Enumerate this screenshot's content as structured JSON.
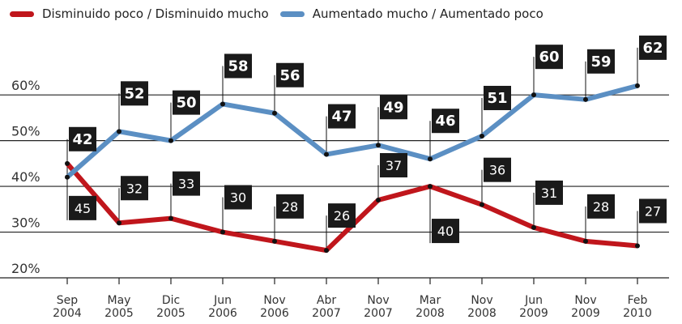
{
  "chart_data": {
    "type": "line",
    "categories": [
      "Sep 2004",
      "May 2005",
      "Dic 2005",
      "Jun 2006",
      "Nov 2006",
      "Abr 2007",
      "Nov 2007",
      "Mar 2008",
      "Nov 2008",
      "Jun 2009",
      "Nov 2009",
      "Feb 2010"
    ],
    "series": [
      {
        "name": "Disminuido poco / Disminuido mucho",
        "color": "#c0161c",
        "values": [
          45,
          32,
          33,
          30,
          28,
          26,
          37,
          40,
          36,
          31,
          28,
          27
        ]
      },
      {
        "name": "Aumentado mucho / Aumentado poco",
        "color": "#5b8fc3",
        "values": [
          42,
          52,
          50,
          58,
          56,
          47,
          49,
          46,
          51,
          60,
          59,
          62
        ]
      }
    ],
    "ylim": [
      20,
      68
    ],
    "yticks": [
      {
        "value": 20,
        "label": "20%"
      },
      {
        "value": 30,
        "label": "30%"
      },
      {
        "value": 40,
        "label": "40%"
      },
      {
        "value": 50,
        "label": "50%"
      },
      {
        "value": 60,
        "label": "60%"
      }
    ],
    "grid": true
  }
}
